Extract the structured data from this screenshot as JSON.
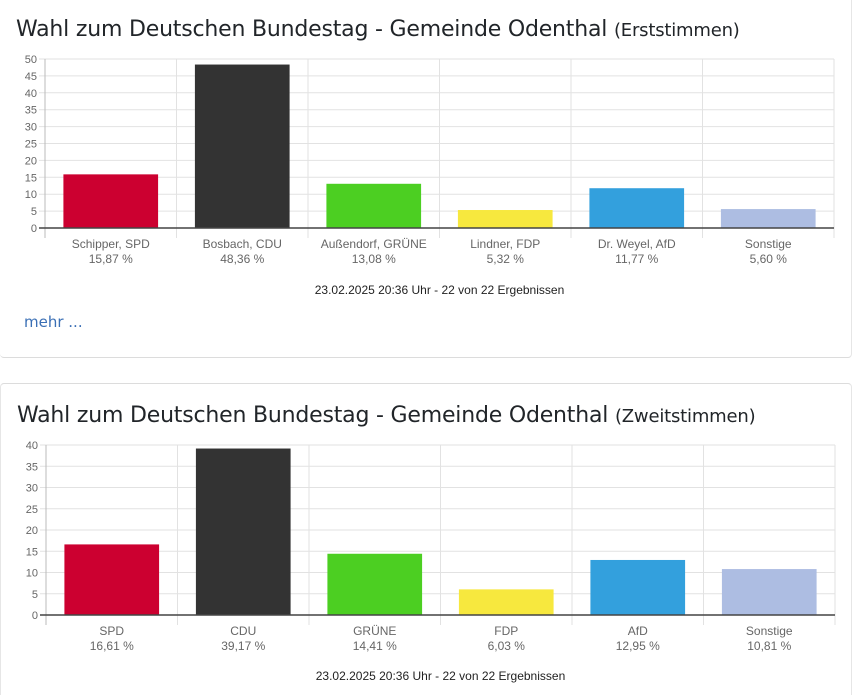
{
  "more_link": "mehr ...",
  "chart_data": [
    {
      "type": "bar",
      "title": "Wahl zum Deutschen Bundestag - Gemeinde Odenthal",
      "subtitle": "(Erststimmen)",
      "categories": [
        "Schipper, SPD",
        "Bosbach, CDU",
        "Außendorf, GRÜNE",
        "Lindner, FDP",
        "Dr. Weyel, AfD",
        "Sonstige"
      ],
      "value_labels": [
        "15,87 %",
        "48,36 %",
        "13,08 %",
        "5,32 %",
        "11,77 %",
        "5,60 %"
      ],
      "values": [
        15.87,
        48.36,
        13.08,
        5.32,
        11.77,
        5.6
      ],
      "colors": [
        "#cc0030",
        "#333333",
        "#4ccf22",
        "#f7e83e",
        "#33a0dd",
        "#adbde2"
      ],
      "ylim": [
        0,
        50
      ],
      "yticks": [
        "0",
        "5",
        "10",
        "15",
        "20",
        "25",
        "30",
        "35",
        "40",
        "45",
        "50"
      ],
      "grid": true,
      "footer": "23.02.2025 20:36 Uhr - 22 von 22 Ergebnissen"
    },
    {
      "type": "bar",
      "title": "Wahl zum Deutschen Bundestag - Gemeinde Odenthal",
      "subtitle": "(Zweitstimmen)",
      "categories": [
        "SPD",
        "CDU",
        "GRÜNE",
        "FDP",
        "AfD",
        "Sonstige"
      ],
      "value_labels": [
        "16,61 %",
        "39,17 %",
        "14,41 %",
        "6,03 %",
        "12,95 %",
        "10,81 %"
      ],
      "values": [
        16.61,
        39.17,
        14.41,
        6.03,
        12.95,
        10.81
      ],
      "colors": [
        "#cc0030",
        "#333333",
        "#4ccf22",
        "#f7e83e",
        "#33a0dd",
        "#adbde2"
      ],
      "ylim": [
        0,
        40
      ],
      "yticks": [
        "0",
        "5",
        "10",
        "15",
        "20",
        "25",
        "30",
        "35",
        "40"
      ],
      "grid": true,
      "footer": "23.02.2025 20:36 Uhr - 22 von 22 Ergebnissen"
    }
  ]
}
